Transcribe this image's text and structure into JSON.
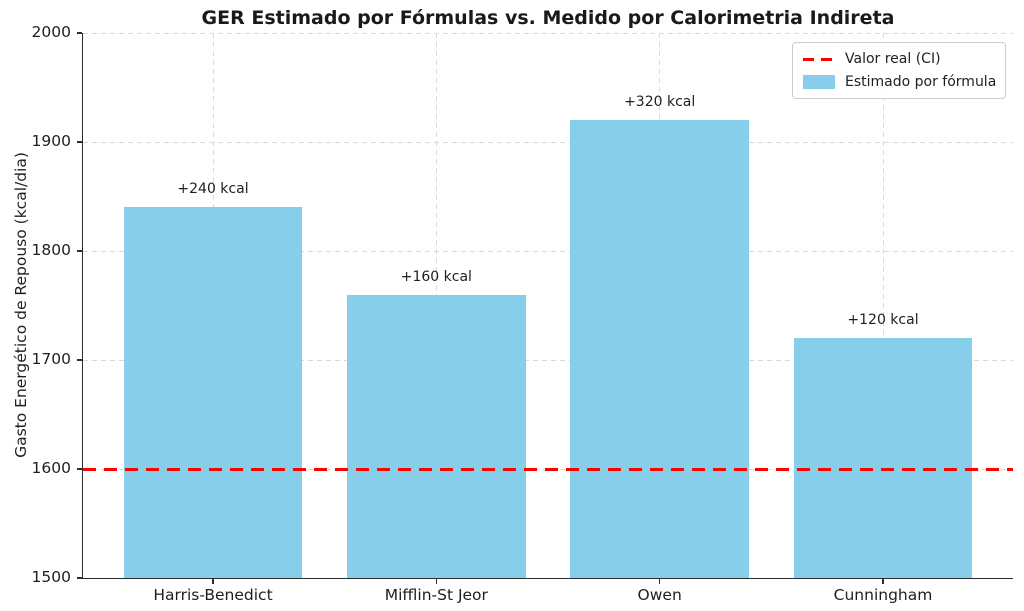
{
  "chart_data": {
    "type": "bar",
    "title": "GER Estimado por Fórmulas vs. Medido por Calorimetria Indireta",
    "ylabel": "Gasto Energético de Repouso (kcal/dia)",
    "xlabel": "",
    "categories": [
      "Harris-Benedict",
      "Mifflin-St Jeor",
      "Owen",
      "Cunningham"
    ],
    "values": [
      1840,
      1760,
      1920,
      1720
    ],
    "bar_labels": [
      "+240 kcal",
      "+160 kcal",
      "+320 kcal",
      "+120 kcal"
    ],
    "bar_color": "#87CEEB",
    "ylim": [
      1500,
      2000
    ],
    "yticks": [
      1500,
      1600,
      1700,
      1800,
      1900,
      2000
    ],
    "grid": true,
    "grid_style": "dashed",
    "reference_line": {
      "value": 1600,
      "color": "#ff0000",
      "style": "dashed",
      "label": "Valor real (CI)"
    },
    "legend": {
      "position": "upper right",
      "entries": [
        {
          "label": "Valor real (CI)",
          "swatch": "dashed-line",
          "color": "#ff0000"
        },
        {
          "label": "Estimado por fórmula",
          "swatch": "patch",
          "color": "#87CEEB"
        }
      ]
    }
  }
}
